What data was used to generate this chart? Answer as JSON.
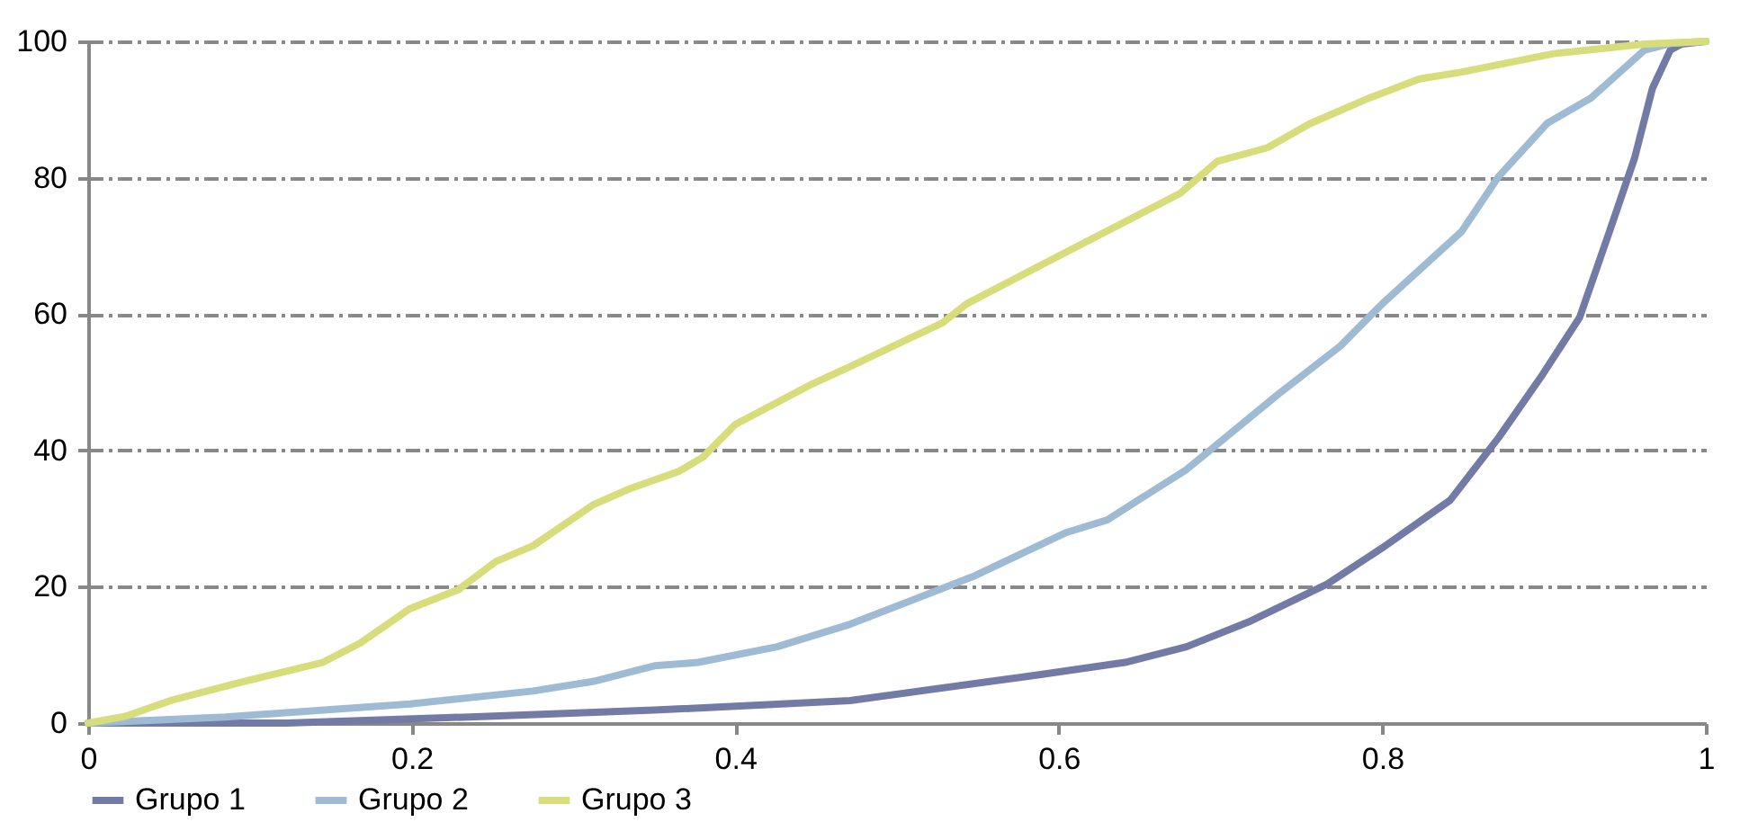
{
  "chart_data": {
    "type": "line",
    "xlim": [
      0,
      1
    ],
    "xticks": [
      0,
      0.2,
      0.4,
      0.6,
      0.8,
      1
    ],
    "ylim": [
      0,
      100
    ],
    "yticks": [
      0,
      20,
      40,
      60,
      80,
      100
    ],
    "grid": "y",
    "legend": "bottom",
    "marker": "none",
    "line_style": "solid",
    "series": [
      {
        "name": "Grupo 1",
        "color": "#717ba6",
        "x": [
          0,
          0.123,
          0.236,
          0.35,
          0.471,
          0.585,
          0.641,
          0.679,
          0.717,
          0.766,
          0.8,
          0.842,
          0.872,
          0.899,
          0.922,
          0.94,
          0.956,
          0.967,
          0.978,
          0.985,
          1
        ],
        "values": [
          0,
          0,
          0.9,
          1.9,
          3.3,
          7,
          8.9,
          11.2,
          14.8,
          20.4,
          25.7,
          32.7,
          41.9,
          51.1,
          59.5,
          71.8,
          82.9,
          93.1,
          98.7,
          99.6,
          100
        ]
      },
      {
        "name": "Grupo 2",
        "color": "#9fbbd3",
        "x": [
          0,
          0.085,
          0.199,
          0.275,
          0.312,
          0.35,
          0.377,
          0.426,
          0.471,
          0.547,
          0.604,
          0.63,
          0.679,
          0.736,
          0.774,
          0.8,
          0.849,
          0.872,
          0.902,
          0.929,
          0.962,
          0.978,
          1
        ],
        "values": [
          0,
          0.9,
          2.8,
          4.7,
          6.1,
          8.4,
          8.9,
          11.2,
          14.5,
          21.5,
          27.9,
          29.8,
          37.2,
          48.3,
          55.3,
          61.5,
          72.1,
          80.2,
          88,
          91.7,
          98.7,
          99.7,
          100
        ]
      },
      {
        "name": "Grupo 3",
        "color": "#d7dd7a",
        "x": [
          0,
          0.023,
          0.051,
          0.096,
          0.145,
          0.168,
          0.199,
          0.229,
          0.252,
          0.275,
          0.312,
          0.335,
          0.365,
          0.38,
          0.4,
          0.448,
          0.471,
          0.528,
          0.543,
          0.599,
          0.675,
          0.698,
          0.729,
          0.755,
          0.792,
          0.823,
          0.849,
          0.906,
          0.962,
          1
        ],
        "values": [
          0,
          1,
          3.3,
          6.1,
          8.9,
          11.7,
          16.8,
          19.6,
          23.7,
          26,
          32,
          34.4,
          36.9,
          39,
          43.8,
          49.8,
          52.3,
          58.7,
          61.5,
          68.4,
          77.7,
          82.4,
          84.4,
          87.9,
          91.7,
          94.5,
          95.5,
          98.2,
          99.6,
          100
        ]
      }
    ]
  }
}
